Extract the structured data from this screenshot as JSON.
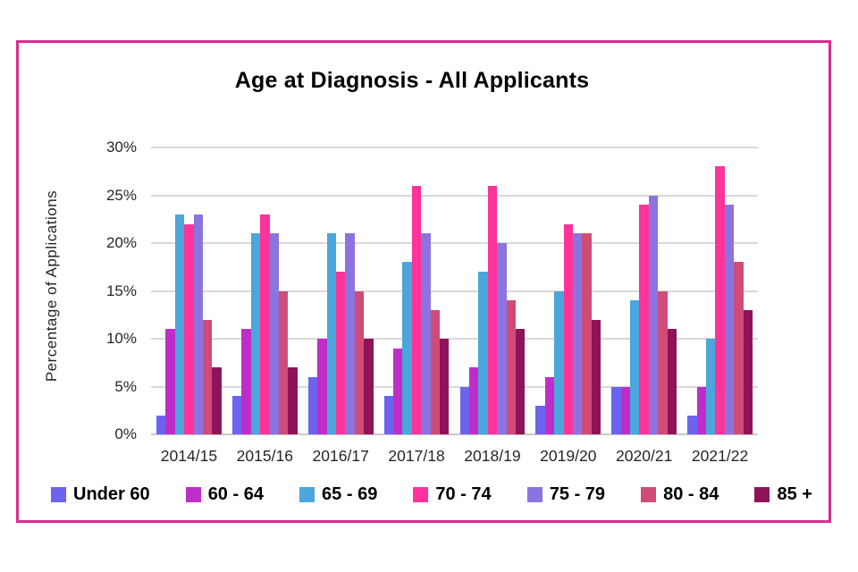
{
  "frame": {
    "border_color": "#DA2B8F",
    "background": "#FFFFFF"
  },
  "chart_data": {
    "type": "bar",
    "title": "Age at Diagnosis - All Applicants",
    "xlabel": "",
    "ylabel": "Percentage of Applications",
    "categories": [
      "2014/15",
      "2015/16",
      "2016/17",
      "2017/18",
      "2018/19",
      "2019/20",
      "2020/21",
      "2021/22"
    ],
    "series": [
      {
        "name": "Under 60",
        "color": "#6C64F0",
        "values": [
          2,
          4,
          6,
          4,
          5,
          3,
          5,
          2
        ]
      },
      {
        "name": "60 - 64",
        "color": "#BF2DC8",
        "values": [
          11,
          11,
          10,
          9,
          7,
          6,
          5,
          5
        ]
      },
      {
        "name": "65 - 69",
        "color": "#4BA6DB",
        "values": [
          23,
          21,
          21,
          18,
          17,
          15,
          14,
          10
        ]
      },
      {
        "name": "70 - 74",
        "color": "#FF3399",
        "values": [
          22,
          23,
          17,
          26,
          26,
          22,
          24,
          28
        ]
      },
      {
        "name": "75 - 79",
        "color": "#8C74E0",
        "values": [
          23,
          21,
          21,
          21,
          20,
          21,
          25,
          24
        ]
      },
      {
        "name": "80 - 84",
        "color": "#D04B78",
        "values": [
          12,
          15,
          15,
          13,
          14,
          21,
          15,
          18
        ]
      },
      {
        "name": "85 +",
        "color": "#8E1457",
        "values": [
          7,
          7,
          10,
          10,
          11,
          12,
          11,
          13
        ]
      }
    ],
    "y_ticks": [
      "0%",
      "5%",
      "10%",
      "15%",
      "20%",
      "25%",
      "30%"
    ],
    "y_tick_values": [
      0,
      5,
      10,
      15,
      20,
      25,
      30
    ],
    "ylim": [
      0,
      30
    ],
    "grid": true,
    "gridline_color": "#D9D9D9",
    "legend_position": "bottom"
  }
}
